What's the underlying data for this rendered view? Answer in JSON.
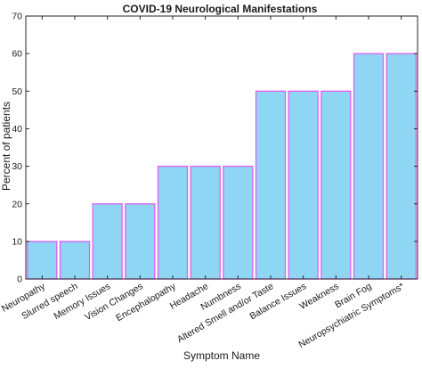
{
  "chart_data": {
    "type": "bar",
    "title": "COVID-19 Neurological Manifestations",
    "xlabel": "Symptom Name",
    "ylabel": "Percent of patients",
    "ylim": [
      0,
      70
    ],
    "yticks": [
      0,
      10,
      20,
      30,
      40,
      50,
      60,
      70
    ],
    "categories": [
      "Neuropathy",
      "Slurred speech",
      "Memory Issues",
      "Vision Changes",
      "Encephalopathy",
      "Headache",
      "Numbness",
      "Altered Smell and/or Taste",
      "Balance Issues",
      "Weakness",
      "Brain Fog",
      "Neuropsychiatric Symptoms*"
    ],
    "values": [
      10,
      10,
      20,
      20,
      30,
      30,
      30,
      50,
      50,
      50,
      60,
      60
    ],
    "grid": false,
    "legend": "none",
    "colors": {
      "bar_fill": "#8fd6f5",
      "bar_edge": "#e060f0",
      "axis": "#262626"
    }
  }
}
